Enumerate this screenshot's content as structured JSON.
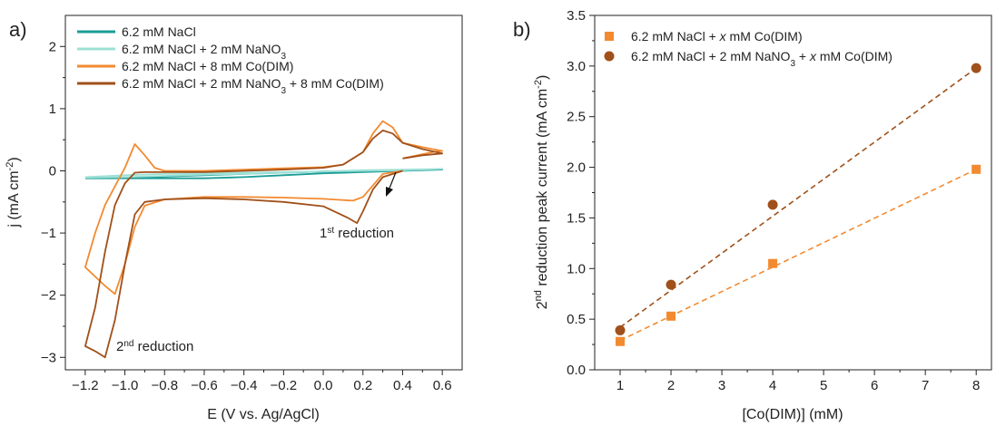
{
  "chart_data": [
    {
      "panel": "a)",
      "type": "line",
      "xlabel": "E (V vs. Ag/AgCl)",
      "ylabel": "j (mA cm^-2)",
      "xlim": [
        -1.3,
        0.7
      ],
      "ylim": [
        -3.2,
        2.5
      ],
      "xticks": [
        -1.2,
        -1.0,
        -0.8,
        -0.6,
        -0.4,
        -0.2,
        0.0,
        0.2,
        0.4,
        0.6
      ],
      "yticks": [
        -3,
        -2,
        -1,
        0,
        1,
        2
      ],
      "legend_position": "top-left",
      "annotations": [
        {
          "text": "1st reduction",
          "x": 0.22,
          "y": -1.2
        },
        {
          "text": "2nd reduction",
          "x": -1.0,
          "y": -3.05
        }
      ],
      "series": [
        {
          "name": "6.2 mM NaCl",
          "color": "#1a9c96",
          "points": [
            [
              -1.2,
              -0.12
            ],
            [
              -1.0,
              -0.12
            ],
            [
              -0.8,
              -0.12
            ],
            [
              -0.6,
              -0.12
            ],
            [
              -0.4,
              -0.1
            ],
            [
              -0.2,
              -0.07
            ],
            [
              0.0,
              -0.04
            ],
            [
              0.2,
              -0.02
            ],
            [
              0.4,
              0.0
            ],
            [
              0.6,
              0.02
            ],
            [
              0.4,
              0.01
            ],
            [
              0.2,
              0.0
            ],
            [
              0.0,
              -0.01
            ],
            [
              -0.2,
              -0.03
            ],
            [
              -0.4,
              -0.05
            ],
            [
              -0.6,
              -0.07
            ],
            [
              -0.8,
              -0.09
            ],
            [
              -1.0,
              -0.11
            ],
            [
              -1.2,
              -0.12
            ]
          ]
        },
        {
          "name": "6.2 mM NaCl + 2 mM NaNO3",
          "color": "#9ee0d6",
          "points": [
            [
              -1.2,
              -0.11
            ],
            [
              -1.0,
              -0.1
            ],
            [
              -0.8,
              -0.08
            ],
            [
              -0.6,
              -0.06
            ],
            [
              -0.4,
              -0.05
            ],
            [
              -0.2,
              -0.03
            ],
            [
              0.0,
              -0.01
            ],
            [
              0.2,
              0.0
            ],
            [
              0.4,
              0.01
            ],
            [
              0.6,
              0.03
            ],
            [
              0.4,
              0.02
            ],
            [
              0.2,
              0.01
            ],
            [
              0.0,
              -0.01
            ],
            [
              -0.2,
              -0.02
            ],
            [
              -0.4,
              -0.03
            ],
            [
              -0.6,
              -0.04
            ],
            [
              -0.8,
              -0.05
            ],
            [
              -1.0,
              -0.07
            ],
            [
              -1.2,
              -0.1
            ]
          ]
        },
        {
          "name": "6.2 mM NaCl + 8 mM Co(DIM)",
          "color": "#f28a30",
          "points": [
            [
              0.4,
              0.0
            ],
            [
              0.3,
              -0.05
            ],
            [
              0.2,
              -0.42
            ],
            [
              0.15,
              -0.48
            ],
            [
              0.0,
              -0.45
            ],
            [
              -0.2,
              -0.43
            ],
            [
              -0.4,
              -0.42
            ],
            [
              -0.6,
              -0.42
            ],
            [
              -0.8,
              -0.46
            ],
            [
              -0.9,
              -0.56
            ],
            [
              -0.95,
              -0.9
            ],
            [
              -1.0,
              -1.5
            ],
            [
              -1.05,
              -1.98
            ],
            [
              -1.1,
              -1.85
            ],
            [
              -1.15,
              -1.7
            ],
            [
              -1.2,
              -1.55
            ],
            [
              -1.15,
              -1.0
            ],
            [
              -1.1,
              -0.55
            ],
            [
              -1.05,
              -0.25
            ],
            [
              -1.0,
              0.05
            ],
            [
              -0.95,
              0.43
            ],
            [
              -0.9,
              0.25
            ],
            [
              -0.85,
              0.05
            ],
            [
              -0.8,
              0.0
            ],
            [
              -0.6,
              0.0
            ],
            [
              -0.4,
              0.02
            ],
            [
              -0.2,
              0.04
            ],
            [
              0.0,
              0.06
            ],
            [
              0.1,
              0.1
            ],
            [
              0.2,
              0.3
            ],
            [
              0.25,
              0.6
            ],
            [
              0.3,
              0.8
            ],
            [
              0.35,
              0.7
            ],
            [
              0.4,
              0.45
            ],
            [
              0.5,
              0.38
            ],
            [
              0.6,
              0.32
            ],
            [
              0.55,
              0.3
            ],
            [
              0.4,
              0.2
            ]
          ]
        },
        {
          "name": "6.2 mM NaCl + 2 mM NaNO3 + 8 mM Co(DIM)",
          "color": "#a0501a",
          "points": [
            [
              0.4,
              0.0
            ],
            [
              0.3,
              -0.1
            ],
            [
              0.25,
              -0.3
            ],
            [
              0.2,
              -0.65
            ],
            [
              0.17,
              -0.84
            ],
            [
              0.12,
              -0.75
            ],
            [
              0.0,
              -0.57
            ],
            [
              -0.2,
              -0.5
            ],
            [
              -0.4,
              -0.46
            ],
            [
              -0.6,
              -0.44
            ],
            [
              -0.8,
              -0.46
            ],
            [
              -0.9,
              -0.5
            ],
            [
              -0.95,
              -0.7
            ],
            [
              -1.0,
              -1.5
            ],
            [
              -1.05,
              -2.4
            ],
            [
              -1.1,
              -3.0
            ],
            [
              -1.15,
              -2.9
            ],
            [
              -1.2,
              -2.82
            ],
            [
              -1.15,
              -2.2
            ],
            [
              -1.1,
              -1.3
            ],
            [
              -1.05,
              -0.55
            ],
            [
              -1.0,
              -0.2
            ],
            [
              -0.95,
              -0.03
            ],
            [
              -0.9,
              -0.02
            ],
            [
              -0.6,
              -0.02
            ],
            [
              -0.4,
              0.0
            ],
            [
              -0.2,
              0.02
            ],
            [
              0.0,
              0.05
            ],
            [
              0.1,
              0.1
            ],
            [
              0.2,
              0.3
            ],
            [
              0.25,
              0.52
            ],
            [
              0.3,
              0.65
            ],
            [
              0.35,
              0.6
            ],
            [
              0.4,
              0.45
            ],
            [
              0.5,
              0.35
            ],
            [
              0.6,
              0.28
            ],
            [
              0.5,
              0.25
            ],
            [
              0.4,
              0.2
            ]
          ]
        }
      ]
    },
    {
      "panel": "b)",
      "type": "scatter",
      "xlabel": "[Co(DIM)] (mM)",
      "ylabel": "2nd reduction peak current (mA cm^-2)",
      "xlim": [
        0.5,
        8.3
      ],
      "ylim": [
        0.0,
        3.5
      ],
      "xticks": [
        1,
        2,
        3,
        4,
        5,
        6,
        7,
        8
      ],
      "yticks": [
        0.0,
        0.5,
        1.0,
        1.5,
        2.0,
        2.5,
        3.0,
        3.5
      ],
      "legend_position": "top-left",
      "series": [
        {
          "name": "6.2 mM NaCl + x mM Co(DIM)",
          "marker": "square",
          "color": "#f28a30",
          "x": [
            1,
            2,
            4,
            8
          ],
          "y": [
            0.28,
            0.53,
            1.05,
            1.98
          ],
          "fit": [
            [
              1,
              0.29
            ],
            [
              8,
              1.98
            ]
          ]
        },
        {
          "name": "6.2 mM NaCl + 2 mM NaNO3 + x mM Co(DIM)",
          "marker": "circle",
          "color": "#a0501a",
          "x": [
            1,
            2,
            4,
            8
          ],
          "y": [
            0.39,
            0.84,
            1.63,
            2.98
          ],
          "fit": [
            [
              1,
              0.42
            ],
            [
              8,
              2.98
            ]
          ]
        }
      ]
    }
  ]
}
